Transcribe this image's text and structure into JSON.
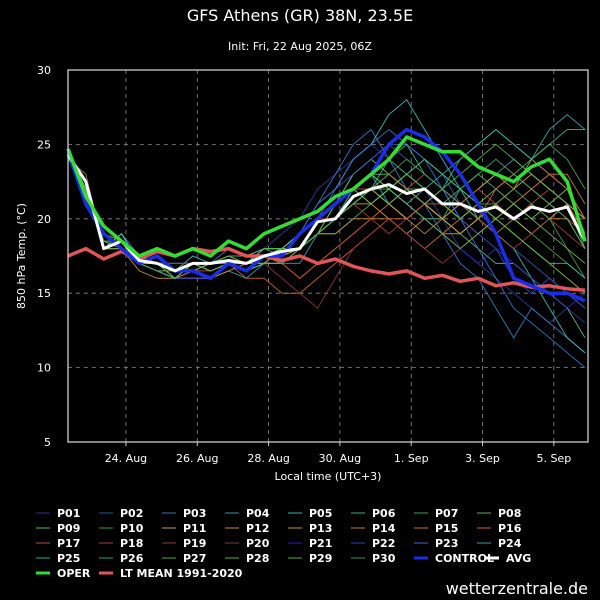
{
  "chart_data": {
    "type": "line",
    "title": "GFS Athens (GR) 38N, 23.5E",
    "subtitle": "Init: Fri, 22 Aug 2025, 06Z",
    "xlabel": "Local time (UTC+3)",
    "ylabel": "850 hPa Temp. (°C)",
    "x_unit": "hours since init",
    "xlim": [
      0,
      350
    ],
    "ylim": [
      5,
      30
    ],
    "yticks": [
      5,
      10,
      15,
      20,
      25,
      30
    ],
    "xticks": [
      {
        "x": 39,
        "label": "24. Aug"
      },
      {
        "x": 87,
        "label": "26. Aug"
      },
      {
        "x": 135,
        "label": "28. Aug"
      },
      {
        "x": 183,
        "label": "30. Aug"
      },
      {
        "x": 231,
        "label": "1. Sep"
      },
      {
        "x": 279,
        "label": "3. Sep"
      },
      {
        "x": 327,
        "label": "5. Sep"
      }
    ],
    "grid": true,
    "legend_position": "bottom",
    "x": [
      0,
      12,
      24,
      36,
      48,
      60,
      72,
      84,
      96,
      108,
      120,
      132,
      144,
      156,
      168,
      180,
      192,
      204,
      216,
      228,
      240,
      252,
      264,
      276,
      288,
      300,
      312,
      324,
      336,
      348
    ],
    "members": [
      {
        "name": "P01",
        "color": "#2a3f9e",
        "values": [
          24.5,
          22,
          18,
          18,
          17,
          16.5,
          16,
          16.5,
          16,
          17,
          17,
          18,
          19,
          20,
          22,
          23,
          24,
          25,
          24,
          23,
          22,
          20,
          18,
          17,
          16,
          15,
          14,
          13,
          14,
          13
        ]
      },
      {
        "name": "P02",
        "color": "#2f5fb0",
        "values": [
          24.5,
          22,
          18.5,
          18.5,
          17,
          17,
          16,
          17,
          17,
          17,
          17,
          18,
          18,
          19,
          20,
          21,
          23,
          24,
          25,
          25,
          24,
          23,
          21,
          20,
          19,
          18,
          17,
          16,
          15,
          14
        ]
      },
      {
        "name": "P03",
        "color": "#3d82c4",
        "values": [
          24,
          22.5,
          18,
          19,
          17.5,
          17,
          17,
          17,
          17,
          18,
          17.5,
          18,
          18,
          19,
          21,
          23,
          25,
          26,
          24,
          22,
          21,
          19,
          17,
          16,
          14,
          12,
          14,
          13,
          12,
          11
        ]
      },
      {
        "name": "P04",
        "color": "#3aa3b3",
        "values": [
          24,
          23,
          18,
          18.5,
          17,
          16.5,
          16,
          16,
          16,
          16.5,
          16,
          17,
          17,
          17,
          19,
          20,
          22,
          23,
          21,
          20,
          21,
          22,
          21,
          22,
          23,
          24,
          23,
          22,
          21,
          20
        ]
      },
      {
        "name": "P05",
        "color": "#45c1c1",
        "values": [
          24.5,
          22,
          18,
          19,
          17,
          17.5,
          16.5,
          17.5,
          17,
          17,
          17,
          17.5,
          18,
          19,
          21,
          22,
          24,
          25,
          27,
          28,
          26,
          24,
          22,
          20,
          19,
          18,
          16,
          14,
          12,
          11
        ]
      },
      {
        "name": "P06",
        "color": "#3fbf8f",
        "values": [
          24,
          22.5,
          18.5,
          18,
          17.5,
          17,
          16.5,
          17,
          16.5,
          17,
          17,
          17,
          18,
          18,
          19,
          20,
          21,
          22,
          24,
          25,
          23,
          22,
          24,
          25,
          26,
          25,
          24,
          25,
          26,
          26
        ]
      },
      {
        "name": "P07",
        "color": "#4caf6a",
        "values": [
          24.5,
          22,
          18,
          18.5,
          17,
          16.5,
          16,
          16.5,
          17,
          17,
          17,
          18,
          17.5,
          18,
          19,
          19,
          20,
          21,
          22,
          21,
          20,
          20,
          22,
          23,
          22,
          23,
          24,
          25,
          24,
          22
        ]
      },
      {
        "name": "P08",
        "color": "#5fc47a",
        "values": [
          24,
          22.5,
          18,
          18,
          17,
          17,
          17,
          17,
          17,
          17.5,
          17.5,
          18,
          18,
          19,
          20,
          21,
          22,
          23,
          23,
          22,
          21,
          20,
          19,
          18,
          17,
          17,
          16,
          15,
          14,
          12
        ]
      },
      {
        "name": "P09",
        "color": "#6ccf5a",
        "values": [
          24.5,
          22,
          19,
          18.5,
          17.5,
          17,
          16,
          17,
          17,
          17,
          16.5,
          17,
          17,
          18,
          19,
          21,
          23,
          24,
          23,
          22,
          22,
          21,
          20,
          21,
          22,
          21,
          20,
          21,
          22,
          19
        ]
      },
      {
        "name": "P10",
        "color": "#3fae3f",
        "values": [
          24,
          23,
          18,
          18,
          17,
          17,
          16.5,
          17,
          17,
          17.5,
          17,
          17.5,
          18,
          18,
          19,
          20,
          21,
          22,
          22,
          23,
          24,
          23,
          22,
          21,
          21,
          20,
          19,
          18,
          17,
          16
        ]
      },
      {
        "name": "P11",
        "color": "#d4b45a",
        "values": [
          24.5,
          22,
          18,
          18.5,
          17,
          16.5,
          16.5,
          17,
          17,
          17,
          17,
          18,
          18,
          18,
          19,
          20,
          21,
          22,
          21,
          20,
          21,
          20,
          19,
          20,
          21,
          20,
          19,
          20,
          21,
          20
        ]
      },
      {
        "name": "P12",
        "color": "#d9a050",
        "values": [
          24,
          22.5,
          18.5,
          18,
          16.5,
          16,
          16,
          16,
          16,
          16.5,
          17,
          17,
          17,
          18,
          19,
          20,
          21,
          21,
          20,
          19,
          20,
          19,
          19,
          20,
          21,
          22,
          23,
          22,
          21,
          19
        ]
      },
      {
        "name": "P13",
        "color": "#cfa74a",
        "values": [
          24.5,
          22,
          18,
          19,
          17,
          17,
          16.5,
          17,
          16.5,
          17,
          17,
          17.5,
          17.5,
          18,
          19,
          20,
          21,
          22,
          21,
          22,
          21,
          20,
          21,
          22,
          23,
          22,
          24,
          23,
          22,
          20
        ]
      },
      {
        "name": "P14",
        "color": "#c8903e",
        "values": [
          24,
          22.5,
          18,
          18.5,
          17,
          16.5,
          16,
          16.5,
          17,
          17,
          17,
          17,
          18,
          18,
          19,
          19,
          20,
          20,
          21,
          20,
          19,
          20,
          21,
          20,
          19,
          20,
          21,
          20,
          20,
          18
        ]
      },
      {
        "name": "P15",
        "color": "#d0803a",
        "values": [
          24.5,
          22,
          18,
          18,
          17.5,
          17,
          16.5,
          17,
          17,
          17,
          16.5,
          17,
          17,
          16,
          17,
          18,
          19,
          20,
          20,
          19,
          18,
          19,
          20,
          21,
          20,
          21,
          22,
          23,
          23,
          21
        ]
      },
      {
        "name": "P16",
        "color": "#d56a3a",
        "values": [
          24,
          22.5,
          18.5,
          18.5,
          17,
          17,
          16.5,
          17,
          17,
          17,
          16,
          16,
          15,
          15,
          16,
          17,
          18,
          19,
          20,
          20,
          21,
          22,
          21,
          20,
          22,
          23,
          22,
          21,
          20,
          19
        ]
      },
      {
        "name": "P17",
        "color": "#c85a3a",
        "values": [
          24.5,
          22,
          18,
          18.5,
          17,
          16.5,
          16,
          16.5,
          16.5,
          17,
          17,
          17.5,
          18,
          19,
          20,
          21,
          22,
          22,
          23,
          22,
          21,
          21,
          20,
          19,
          20,
          21,
          22,
          23,
          22,
          20
        ]
      },
      {
        "name": "P18",
        "color": "#b84a3a",
        "values": [
          24,
          22.5,
          18,
          18,
          17,
          17,
          17,
          17,
          17,
          17,
          17,
          17.5,
          17,
          16,
          17,
          18,
          19,
          20,
          21,
          22,
          23,
          22,
          21,
          22,
          21,
          20,
          21,
          22,
          21,
          19
        ]
      },
      {
        "name": "P19",
        "color": "#a8403a",
        "values": [
          24.5,
          22,
          18,
          18.5,
          17,
          16.5,
          16.5,
          17,
          17,
          17,
          17,
          18,
          18,
          19,
          20,
          20,
          21,
          20,
          19,
          20,
          21,
          22,
          21,
          20,
          19,
          18,
          19,
          20,
          19,
          18
        ]
      },
      {
        "name": "P20",
        "color": "#983838",
        "values": [
          24,
          23,
          18,
          18,
          17,
          17,
          16.5,
          17,
          17,
          17.5,
          17,
          17,
          16,
          15,
          14,
          16,
          18,
          19,
          20,
          19,
          18,
          17,
          18,
          19,
          20,
          19,
          18,
          17,
          16,
          15
        ]
      },
      {
        "name": "P21",
        "color": "#2b2bd0",
        "values": [
          24.5,
          22,
          18,
          18.5,
          17,
          16.5,
          16,
          16,
          16,
          17,
          17,
          18,
          18,
          19,
          20,
          21,
          22,
          23,
          22,
          21,
          20,
          19,
          18,
          17,
          18,
          17,
          16,
          15,
          14,
          15
        ]
      },
      {
        "name": "P22",
        "color": "#3050c8",
        "values": [
          24,
          22.5,
          18,
          18.5,
          17.5,
          17,
          17,
          17,
          17,
          17,
          17,
          18,
          18,
          19,
          21,
          22,
          23,
          24,
          25,
          24,
          23,
          22,
          20,
          19,
          18,
          16,
          15,
          16,
          15,
          14
        ]
      },
      {
        "name": "P23",
        "color": "#3a7ad8",
        "values": [
          24.5,
          22,
          18.5,
          18,
          17,
          17,
          16.5,
          17,
          17,
          17,
          17,
          17.5,
          18,
          18,
          20,
          22,
          24,
          25,
          26,
          25,
          24,
          22,
          20,
          18,
          16,
          14,
          13,
          12,
          11,
          10
        ]
      },
      {
        "name": "P24",
        "color": "#3ab0b0",
        "values": [
          24,
          22.5,
          18,
          19,
          17,
          16.5,
          16,
          17,
          17,
          17,
          16.5,
          17,
          17,
          18,
          19,
          20,
          22,
          23,
          22,
          21,
          22,
          23,
          24,
          25,
          26,
          25,
          24,
          26,
          27,
          26
        ]
      },
      {
        "name": "P25",
        "color": "#40b8a0",
        "values": [
          24.5,
          22,
          18,
          18.5,
          17,
          17,
          16.5,
          16.5,
          17,
          17,
          17,
          17.5,
          18,
          19,
          20,
          21,
          22,
          21,
          22,
          23,
          24,
          23,
          22,
          21,
          20,
          19,
          18,
          17,
          17,
          16
        ]
      },
      {
        "name": "P26",
        "color": "#3fb070",
        "values": [
          24,
          22.5,
          18.5,
          18,
          17,
          16.5,
          16,
          17,
          17,
          17,
          17,
          18,
          18,
          19,
          20,
          21,
          22,
          23,
          24,
          23,
          22,
          21,
          22,
          23,
          24,
          23,
          22,
          21,
          20,
          18
        ]
      },
      {
        "name": "P27",
        "color": "#5ab85a",
        "values": [
          24.5,
          22,
          18,
          18.5,
          17,
          17,
          16.5,
          17,
          16.5,
          17,
          17,
          17.5,
          18,
          18,
          19,
          20,
          21,
          22,
          21,
          22,
          21,
          22,
          23,
          24,
          25,
          24,
          23,
          22,
          21,
          18
        ]
      },
      {
        "name": "P28",
        "color": "#70c050",
        "values": [
          24,
          22.5,
          18,
          18,
          17,
          17,
          16.5,
          17,
          17,
          17.5,
          17,
          17,
          18,
          19,
          20,
          21,
          22,
          21,
          22,
          21,
          20,
          19,
          18,
          19,
          20,
          21,
          20,
          19,
          18,
          17
        ]
      },
      {
        "name": "P29",
        "color": "#60c040",
        "values": [
          24.5,
          22,
          18,
          18.5,
          17.5,
          17,
          16,
          17,
          17,
          17,
          17,
          18,
          18,
          18,
          19,
          21,
          22,
          23,
          22,
          23,
          22,
          21,
          20,
          21,
          20,
          19,
          18,
          17,
          16,
          15
        ]
      },
      {
        "name": "P30",
        "color": "#4aa050",
        "values": [
          24,
          22.5,
          18.5,
          18.5,
          17,
          16.5,
          16.5,
          17,
          17,
          17,
          17,
          17.5,
          17,
          18,
          19,
          20,
          21,
          22,
          23,
          24,
          23,
          22,
          21,
          20,
          21,
          22,
          21,
          20,
          18,
          16
        ]
      }
    ],
    "highlight_series": [
      {
        "name": "LT MEAN 1991-2020",
        "color": "#e05555",
        "values": [
          17.5,
          18,
          17.3,
          17.8,
          17.3,
          17.8,
          17.5,
          18,
          17.8,
          18,
          17.5,
          17.5,
          17.2,
          17.5,
          17,
          17.3,
          16.8,
          16.5,
          16.3,
          16.5,
          16,
          16.2,
          15.8,
          16,
          15.5,
          15.7,
          15.4,
          15.5,
          15.3,
          15.2
        ]
      },
      {
        "name": "CONTROL",
        "color": "#1a2ee8",
        "values": [
          24.5,
          21,
          19,
          18,
          17,
          17.5,
          16.5,
          16.5,
          16,
          17,
          16.5,
          17.5,
          17.5,
          19,
          20,
          21,
          22,
          23,
          25,
          26,
          25.5,
          24.5,
          23,
          21,
          19,
          16,
          15.5,
          15,
          15,
          14.5
        ]
      },
      {
        "name": "AVG",
        "color": "#ffffff",
        "values": [
          24.3,
          22.5,
          18,
          18.5,
          17.2,
          17,
          16.5,
          17,
          17,
          17.2,
          17,
          17.5,
          17.8,
          18,
          19.8,
          20,
          21.5,
          22,
          22.3,
          21.7,
          22,
          21,
          21,
          20.5,
          20.8,
          20,
          20.8,
          20.5,
          20.8,
          18.5
        ]
      },
      {
        "name": "OPER",
        "color": "#33dd33",
        "values": [
          24.7,
          21.5,
          19.5,
          18.5,
          17.5,
          18,
          17.5,
          18,
          17.5,
          18.5,
          18,
          19,
          19.5,
          20,
          20.5,
          21.5,
          22,
          23,
          24,
          25.5,
          25,
          24.5,
          24.5,
          23.5,
          23,
          22.5,
          23.5,
          24,
          22.5,
          18.5
        ]
      }
    ],
    "legend": [
      "P01",
      "P02",
      "P03",
      "P04",
      "P05",
      "P06",
      "P07",
      "P08",
      "P09",
      "P10",
      "P11",
      "P12",
      "P13",
      "P14",
      "P15",
      "P16",
      "P17",
      "P18",
      "P19",
      "P20",
      "P21",
      "P22",
      "P23",
      "P24",
      "P25",
      "P26",
      "P27",
      "P28",
      "P29",
      "P30",
      "CONTROL",
      "AVG",
      "OPER",
      "LT MEAN 1991-2020"
    ]
  },
  "credit": "wetterzentrale.de"
}
